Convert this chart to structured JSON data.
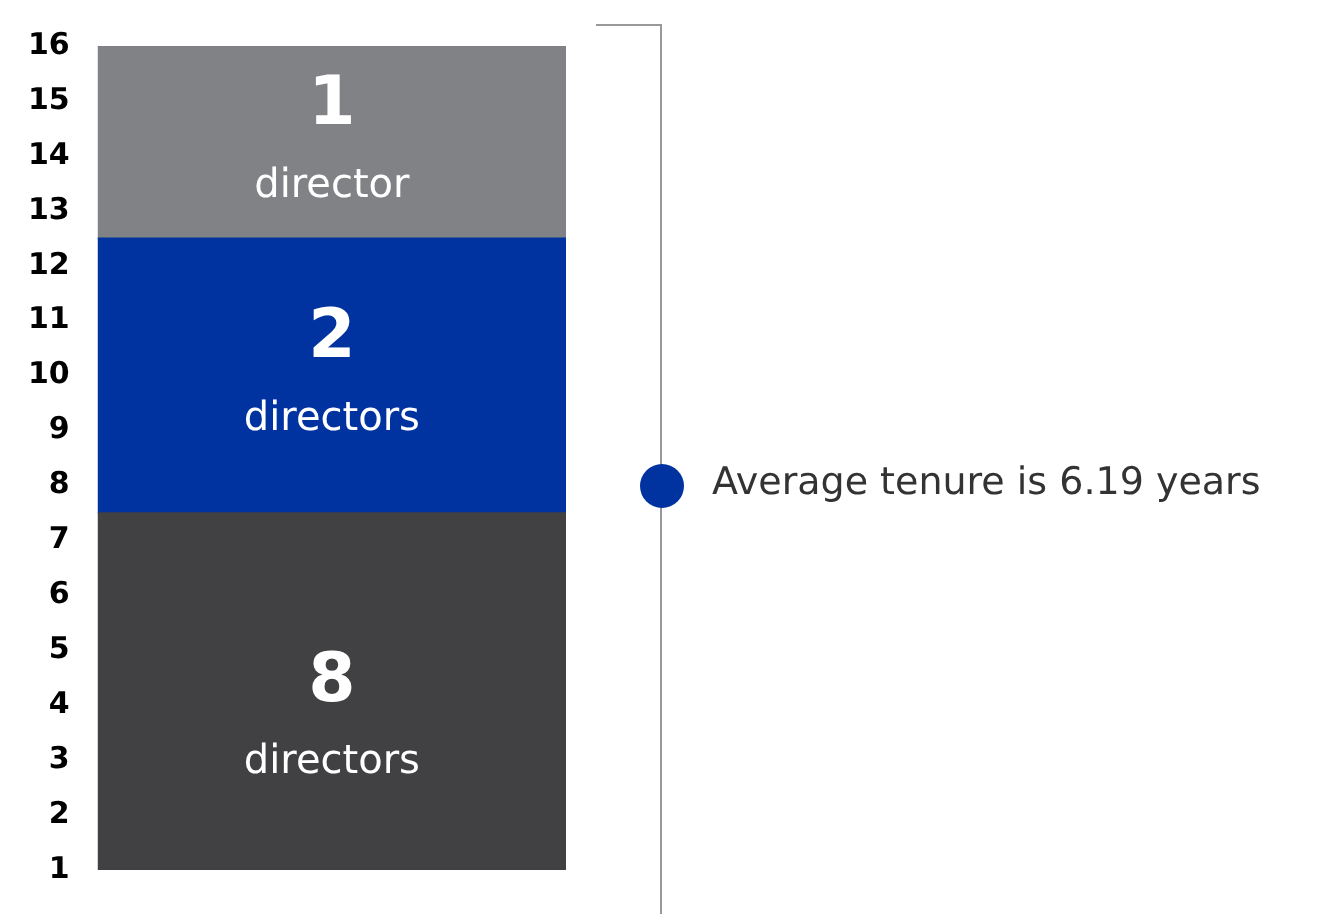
{
  "chart_data": {
    "type": "bar",
    "stacked": true,
    "categories": [
      null
    ],
    "series": [
      {
        "name": "8 directors",
        "color": "#414042",
        "values": [
          7.5
        ]
      },
      {
        "name": "2 directors",
        "color": "#0033a0",
        "values": [
          5
        ]
      },
      {
        "name": "1 director",
        "color": "#808285",
        "values": [
          3.5
        ]
      }
    ],
    "ylim": [
      1,
      16
    ],
    "yticks": [
      1,
      2,
      3,
      4,
      5,
      6,
      7,
      8,
      9,
      10,
      11,
      12,
      13,
      14,
      15,
      16
    ],
    "tick_labels": "y",
    "legend": false,
    "annotations": [
      "Average tenure is 6.19 years"
    ]
  }
}
